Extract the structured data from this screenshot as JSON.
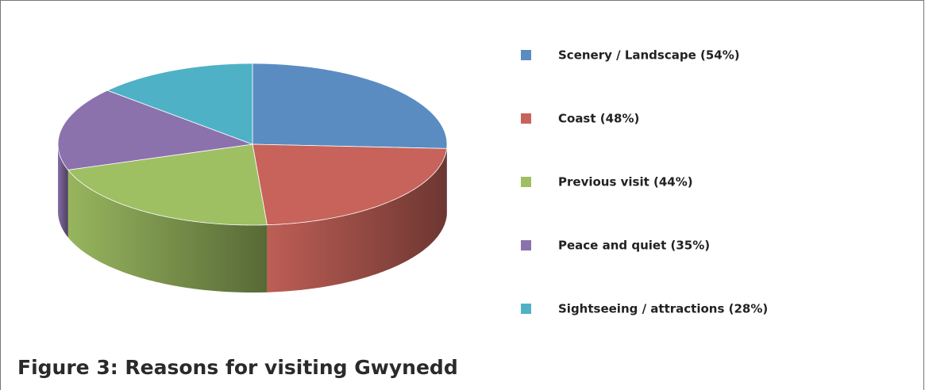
{
  "chart_data": {
    "type": "pie",
    "title": "Figure 3: Reasons for visiting Gwynedd",
    "categories": [
      "Scenery / Landscape (54%)",
      "Coast (48%)",
      "Previous visit (44%)",
      "Peace and quiet (35%)",
      "Sightseeing / attractions (28%)"
    ],
    "values": [
      54,
      48,
      44,
      35,
      28
    ],
    "colors": [
      "#5b8cc1",
      "#c7635a",
      "#9fbf63",
      "#8b72ad",
      "#4fb1c6"
    ],
    "legend": "right"
  }
}
